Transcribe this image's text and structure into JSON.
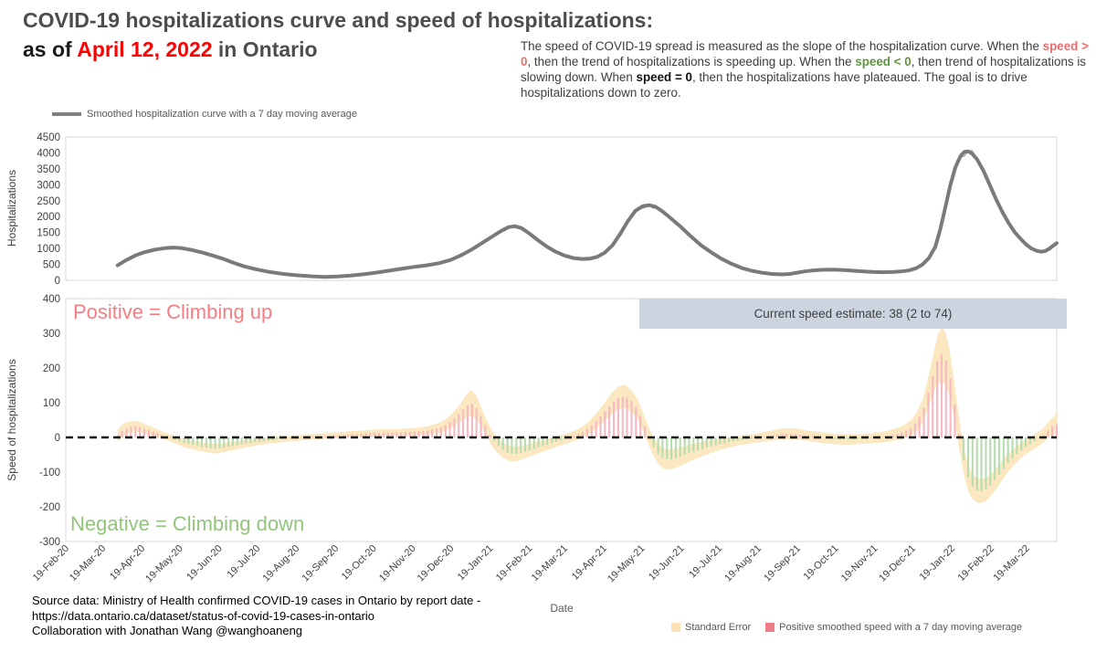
{
  "title": {
    "line1": "COVID-19 hospitalizations curve and speed of hospitalizations:",
    "as_of": "as of ",
    "date": "April 12, 2022",
    "location": " in Ontario"
  },
  "explanation": {
    "p1": "The speed of COVID-19 spread is measured as the slope of the hospitalization curve. When the ",
    "p2": "speed > 0",
    "p3": ", then the trend of hospitalizations is speeding up. When the ",
    "p4": "speed < 0",
    "p5": ", then trend of hospitalizations is slowing down. When ",
    "p6": "speed = 0",
    "p7": ", then the hospitalizations have plateaued. The goal is to drive hospitalizations down to zero."
  },
  "source": {
    "line1": "Source data: Ministry of Health confirmed COVID-19 cases in Ontario by report date -",
    "line2": "https://data.ontario.ca/dataset/status-of-covid-19-cases-in-ontario",
    "line3": "Collaboration with Jonathan Wang @wanghoaneng"
  },
  "colors": {
    "smoothed_curve": "#7a7a7a",
    "raw_curve": "#a3a3a3",
    "band": "#fbe7c0",
    "positive_bar": "#f6b8c1",
    "negative_bar": "#b7dcb0",
    "zero_line": "#111111",
    "plot_border": "#d9d9d9",
    "tick_text": "#3f3f3f",
    "estimate_box_bg": "#ccd4e0",
    "annotation_positive": "#f47e82",
    "annotation_negative": "#93c47d",
    "legend_se_swatch": "#fbe3b5",
    "legend_pos_swatch": "#ed7d88",
    "title_date_red": "#fe0000"
  },
  "chart_data": [
    {
      "type": "line",
      "title": "Hospitalizations curve",
      "ylabel": "Hospitalizations",
      "series_name": "Smoothed hospitalization curve with a 7 day moving average",
      "ylim": [
        0,
        4500
      ],
      "yticks": [
        0,
        500,
        1000,
        1500,
        2000,
        2500,
        3000,
        3500,
        4000,
        4500
      ],
      "x_unit": "days since 19-Feb-2020",
      "x_range_days": [
        0,
        783
      ],
      "points": [
        [
          41,
          470
        ],
        [
          48,
          640
        ],
        [
          55,
          780
        ],
        [
          62,
          880
        ],
        [
          70,
          960
        ],
        [
          78,
          1010
        ],
        [
          85,
          1030
        ],
        [
          92,
          1010
        ],
        [
          100,
          950
        ],
        [
          108,
          870
        ],
        [
          116,
          780
        ],
        [
          124,
          680
        ],
        [
          132,
          560
        ],
        [
          140,
          450
        ],
        [
          150,
          350
        ],
        [
          160,
          270
        ],
        [
          172,
          200
        ],
        [
          182,
          160
        ],
        [
          195,
          125
        ],
        [
          205,
          110
        ],
        [
          215,
          120
        ],
        [
          225,
          150
        ],
        [
          235,
          190
        ],
        [
          245,
          240
        ],
        [
          255,
          300
        ],
        [
          265,
          360
        ],
        [
          275,
          420
        ],
        [
          285,
          470
        ],
        [
          295,
          540
        ],
        [
          304,
          640
        ],
        [
          312,
          780
        ],
        [
          320,
          950
        ],
        [
          328,
          1150
        ],
        [
          336,
          1350
        ],
        [
          344,
          1550
        ],
        [
          350,
          1670
        ],
        [
          355,
          1700
        ],
        [
          360,
          1640
        ],
        [
          366,
          1480
        ],
        [
          373,
          1260
        ],
        [
          380,
          1060
        ],
        [
          387,
          900
        ],
        [
          394,
          780
        ],
        [
          401,
          700
        ],
        [
          408,
          670
        ],
        [
          414,
          680
        ],
        [
          420,
          740
        ],
        [
          426,
          870
        ],
        [
          432,
          1100
        ],
        [
          438,
          1450
        ],
        [
          444,
          1850
        ],
        [
          450,
          2180
        ],
        [
          456,
          2330
        ],
        [
          461,
          2360
        ],
        [
          466,
          2310
        ],
        [
          472,
          2150
        ],
        [
          478,
          1950
        ],
        [
          486,
          1680
        ],
        [
          494,
          1380
        ],
        [
          502,
          1100
        ],
        [
          510,
          880
        ],
        [
          518,
          680
        ],
        [
          526,
          520
        ],
        [
          534,
          390
        ],
        [
          542,
          300
        ],
        [
          550,
          240
        ],
        [
          558,
          200
        ],
        [
          566,
          185
        ],
        [
          572,
          200
        ],
        [
          578,
          240
        ],
        [
          584,
          280
        ],
        [
          590,
          310
        ],
        [
          597,
          330
        ],
        [
          604,
          335
        ],
        [
          611,
          330
        ],
        [
          618,
          315
        ],
        [
          625,
          295
        ],
        [
          632,
          275
        ],
        [
          639,
          260
        ],
        [
          646,
          255
        ],
        [
          653,
          260
        ],
        [
          660,
          280
        ],
        [
          666,
          310
        ],
        [
          672,
          380
        ],
        [
          677,
          500
        ],
        [
          682,
          700
        ],
        [
          687,
          1050
        ],
        [
          691,
          1600
        ],
        [
          695,
          2300
        ],
        [
          699,
          3000
        ],
        [
          703,
          3550
        ],
        [
          707,
          3900
        ],
        [
          710,
          4030
        ],
        [
          713,
          4050
        ],
        [
          716,
          3980
        ],
        [
          720,
          3800
        ],
        [
          725,
          3450
        ],
        [
          730,
          3000
        ],
        [
          735,
          2550
        ],
        [
          740,
          2150
        ],
        [
          745,
          1800
        ],
        [
          750,
          1500
        ],
        [
          755,
          1280
        ],
        [
          759,
          1120
        ],
        [
          763,
          1000
        ],
        [
          767,
          930
        ],
        [
          771,
          900
        ],
        [
          774,
          920
        ],
        [
          777,
          990
        ],
        [
          780,
          1080
        ],
        [
          783,
          1170
        ]
      ]
    },
    {
      "type": "bar",
      "title": "Speed of hospitalizations",
      "ylabel": "Speed of hospitalizations",
      "xlabel": "Date",
      "ylim": [
        -300,
        400
      ],
      "yticks": [
        400,
        300,
        200,
        100,
        0,
        -100,
        -200,
        -300
      ],
      "annotation_positive": "Positive = Climbing up",
      "annotation_negative": "Negative = Climbing down",
      "estimate_label": "Current speed estimate: 38 (2 to 74)",
      "current_estimate": {
        "value": 38,
        "low": 2,
        "high": 74
      },
      "series": [
        {
          "name": "Standard Error",
          "role": "band"
        },
        {
          "name": "Positive smoothed speed with a 7 day moving average",
          "role": "bars"
        }
      ],
      "x_tick_days": [
        0,
        29,
        60,
        90,
        121,
        151,
        182,
        213,
        243,
        274,
        304,
        335,
        366,
        394,
        425,
        455,
        486,
        516,
        547,
        578,
        608,
        639,
        669,
        700,
        731,
        759
      ],
      "x_tick_labels": [
        "19-Feb-20",
        "19-Mar-20",
        "19-Apr-20",
        "19-May-20",
        "19-Jun-20",
        "19-Jul-20",
        "19-Aug-20",
        "19-Sep-20",
        "19-Oct-20",
        "19-Nov-20",
        "19-Dec-20",
        "19-Jan-21",
        "19-Feb-21",
        "19-Mar-21",
        "19-Apr-21",
        "19-May-21",
        "19-Jun-21",
        "19-Jul-21",
        "19-Aug-21",
        "19-Sep-21",
        "19-Oct-21",
        "19-Nov-21",
        "19-Dec-21",
        "19-Jan-22",
        "19-Feb-22",
        "19-Mar-22"
      ],
      "points": [
        [
          41,
          5,
          18
        ],
        [
          45,
          20,
          18
        ],
        [
          50,
          30,
          16
        ],
        [
          55,
          33,
          15
        ],
        [
          60,
          28,
          14
        ],
        [
          65,
          22,
          13
        ],
        [
          70,
          15,
          12
        ],
        [
          75,
          8,
          11
        ],
        [
          80,
          2,
          10
        ],
        [
          85,
          -5,
          10
        ],
        [
          90,
          -12,
          11
        ],
        [
          95,
          -18,
          12
        ],
        [
          100,
          -22,
          12
        ],
        [
          106,
          -26,
          13
        ],
        [
          112,
          -30,
          13
        ],
        [
          118,
          -33,
          14
        ],
        [
          124,
          -30,
          13
        ],
        [
          130,
          -26,
          12
        ],
        [
          136,
          -22,
          12
        ],
        [
          142,
          -18,
          11
        ],
        [
          150,
          -14,
          10
        ],
        [
          158,
          -10,
          9
        ],
        [
          166,
          -7,
          9
        ],
        [
          174,
          -4,
          8
        ],
        [
          182,
          -2,
          8
        ],
        [
          190,
          0,
          8
        ],
        [
          198,
          2,
          8
        ],
        [
          206,
          4,
          8
        ],
        [
          214,
          6,
          8
        ],
        [
          222,
          8,
          9
        ],
        [
          230,
          10,
          9
        ],
        [
          238,
          12,
          9
        ],
        [
          246,
          13,
          10
        ],
        [
          254,
          14,
          10
        ],
        [
          262,
          14,
          10
        ],
        [
          270,
          15,
          11
        ],
        [
          278,
          17,
          11
        ],
        [
          286,
          20,
          12
        ],
        [
          294,
          26,
          14
        ],
        [
          300,
          35,
          16
        ],
        [
          306,
          50,
          20
        ],
        [
          311,
          68,
          25
        ],
        [
          316,
          88,
          32
        ],
        [
          320,
          100,
          38
        ],
        [
          324,
          88,
          34
        ],
        [
          328,
          62,
          28
        ],
        [
          332,
          30,
          24
        ],
        [
          336,
          2,
          22
        ],
        [
          340,
          -18,
          22
        ],
        [
          345,
          -35,
          22
        ],
        [
          350,
          -46,
          22
        ],
        [
          355,
          -48,
          21
        ],
        [
          360,
          -44,
          20
        ],
        [
          366,
          -38,
          18
        ],
        [
          372,
          -30,
          17
        ],
        [
          378,
          -24,
          16
        ],
        [
          384,
          -17,
          15
        ],
        [
          390,
          -10,
          14
        ],
        [
          396,
          -3,
          14
        ],
        [
          402,
          5,
          15
        ],
        [
          408,
          15,
          16
        ],
        [
          414,
          30,
          18
        ],
        [
          420,
          50,
          22
        ],
        [
          426,
          75,
          26
        ],
        [
          432,
          100,
          30
        ],
        [
          437,
          115,
          33
        ],
        [
          442,
          118,
          33
        ],
        [
          447,
          105,
          31
        ],
        [
          452,
          80,
          28
        ],
        [
          456,
          45,
          26
        ],
        [
          460,
          10,
          25
        ],
        [
          464,
          -25,
          26
        ],
        [
          468,
          -48,
          28
        ],
        [
          472,
          -60,
          29
        ],
        [
          477,
          -64,
          29
        ],
        [
          482,
          -60,
          28
        ],
        [
          488,
          -52,
          26
        ],
        [
          494,
          -44,
          24
        ],
        [
          500,
          -37,
          22
        ],
        [
          506,
          -30,
          20
        ],
        [
          512,
          -24,
          18
        ],
        [
          518,
          -19,
          16
        ],
        [
          524,
          -14,
          15
        ],
        [
          530,
          -10,
          14
        ],
        [
          536,
          -7,
          13
        ],
        [
          542,
          -4,
          13
        ],
        [
          548,
          -1,
          13
        ],
        [
          554,
          3,
          14
        ],
        [
          560,
          7,
          15
        ],
        [
          566,
          10,
          16
        ],
        [
          572,
          11,
          16
        ],
        [
          578,
          9,
          16
        ],
        [
          584,
          6,
          15
        ],
        [
          590,
          3,
          15
        ],
        [
          596,
          0,
          15
        ],
        [
          602,
          -3,
          15
        ],
        [
          608,
          -5,
          15
        ],
        [
          614,
          -6,
          15
        ],
        [
          620,
          -6,
          15
        ],
        [
          626,
          -5,
          14
        ],
        [
          632,
          -4,
          14
        ],
        [
          638,
          -2,
          14
        ],
        [
          644,
          0,
          15
        ],
        [
          650,
          4,
          16
        ],
        [
          656,
          9,
          17
        ],
        [
          662,
          16,
          19
        ],
        [
          668,
          28,
          22
        ],
        [
          673,
          48,
          27
        ],
        [
          678,
          85,
          35
        ],
        [
          682,
          135,
          45
        ],
        [
          686,
          190,
          58
        ],
        [
          689,
          225,
          70
        ],
        [
          692,
          238,
          78
        ],
        [
          695,
          228,
          76
        ],
        [
          698,
          190,
          68
        ],
        [
          701,
          130,
          58
        ],
        [
          704,
          60,
          48
        ],
        [
          707,
          -15,
          40
        ],
        [
          710,
          -75,
          38
        ],
        [
          713,
          -115,
          37
        ],
        [
          716,
          -140,
          36
        ],
        [
          720,
          -153,
          35
        ],
        [
          724,
          -155,
          34
        ],
        [
          728,
          -148,
          33
        ],
        [
          732,
          -133,
          31
        ],
        [
          736,
          -115,
          29
        ],
        [
          740,
          -95,
          27
        ],
        [
          744,
          -76,
          25
        ],
        [
          748,
          -60,
          24
        ],
        [
          752,
          -46,
          23
        ],
        [
          756,
          -34,
          22
        ],
        [
          760,
          -24,
          21
        ],
        [
          764,
          -15,
          20
        ],
        [
          768,
          -6,
          20
        ],
        [
          772,
          5,
          20
        ],
        [
          775,
          16,
          21
        ],
        [
          778,
          28,
          23
        ],
        [
          781,
          36,
          24
        ],
        [
          783,
          38,
          36
        ]
      ]
    }
  ]
}
